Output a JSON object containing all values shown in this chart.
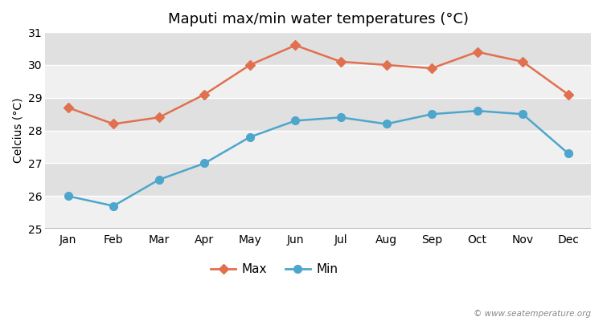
{
  "title": "Maputi max/min water temperatures (°C)",
  "ylabel": "Celcius (°C)",
  "months": [
    "Jan",
    "Feb",
    "Mar",
    "Apr",
    "May",
    "Jun",
    "Jul",
    "Aug",
    "Sep",
    "Oct",
    "Nov",
    "Dec"
  ],
  "max_values": [
    28.7,
    28.2,
    28.4,
    29.1,
    30.0,
    30.6,
    30.1,
    30.0,
    29.9,
    30.4,
    30.1,
    29.1
  ],
  "min_values": [
    26.0,
    25.7,
    26.5,
    27.0,
    27.8,
    28.3,
    28.4,
    28.2,
    28.5,
    28.6,
    28.5,
    27.3
  ],
  "max_color": "#e07050",
  "min_color": "#4da6cc",
  "ylim": [
    25,
    31
  ],
  "yticks": [
    25,
    26,
    27,
    28,
    29,
    30,
    31
  ],
  "fig_bg_color": "#ffffff",
  "plot_bg_color": "#e8e8e8",
  "band_color_light": "#f0f0f0",
  "band_color_dark": "#e0e0e0",
  "grid_color": "#ffffff",
  "legend_labels": [
    "Max",
    "Min"
  ],
  "watermark": "© www.seatemperature.org",
  "title_fontsize": 13,
  "label_fontsize": 10,
  "tick_fontsize": 10,
  "marker_style_max": "D",
  "marker_style_min": "o",
  "line_width": 1.8,
  "marker_size_max": 6,
  "marker_size_min": 7
}
